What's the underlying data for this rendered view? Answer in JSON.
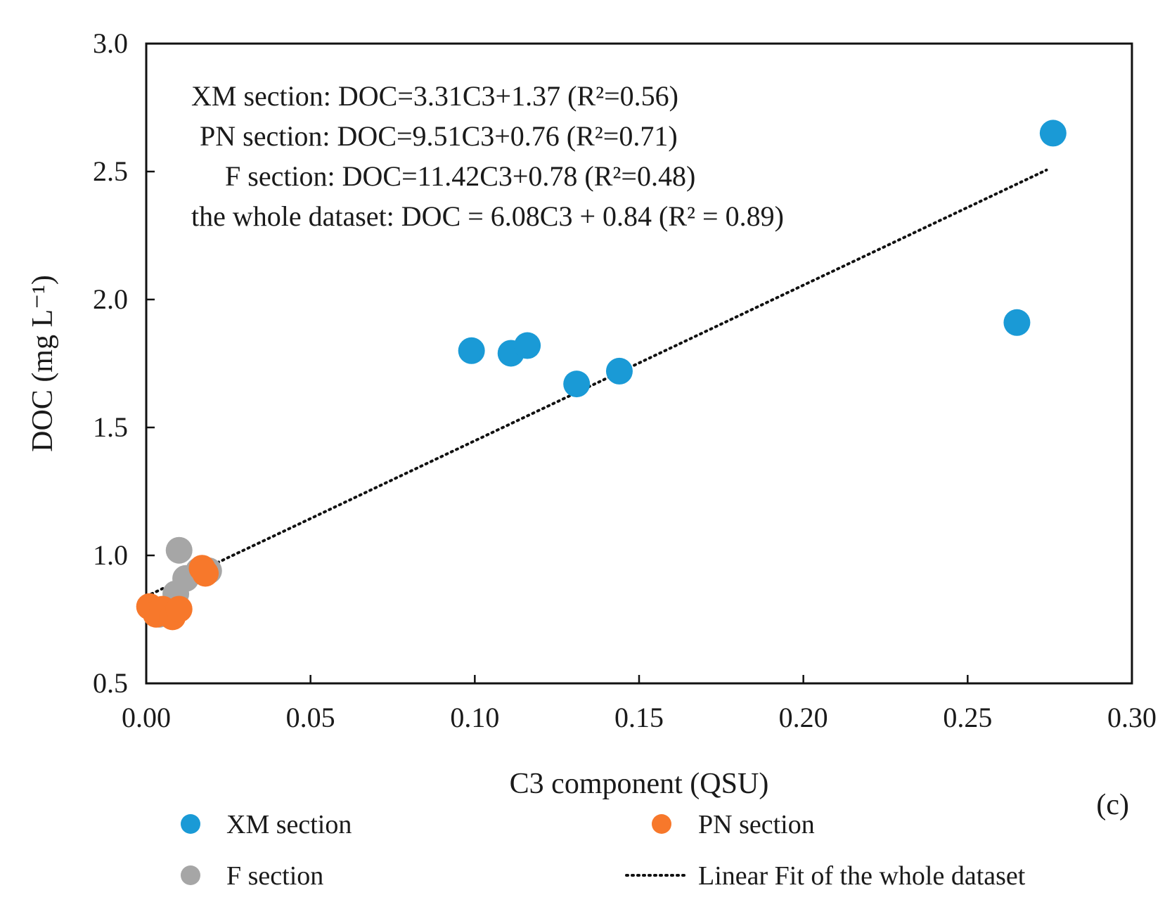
{
  "chart_data": {
    "type": "scatter",
    "panel_label": "(c)",
    "xlabel": "C3 component  (QSU)",
    "ylabel": "DOC (mg L⁻¹)",
    "xlim": [
      0.0,
      0.3
    ],
    "ylim": [
      0.5,
      3.0
    ],
    "xticks": [
      0.0,
      0.05,
      0.1,
      0.15,
      0.2,
      0.25,
      0.3
    ],
    "xtick_labels": [
      "0.00",
      "0.05",
      "0.10",
      "0.15",
      "0.20",
      "0.25",
      "0.30"
    ],
    "yticks": [
      0.5,
      1.0,
      1.5,
      2.0,
      2.5,
      3.0
    ],
    "ytick_labels": [
      "0.5",
      "1.0",
      "1.5",
      "2.0",
      "2.5",
      "3.0"
    ],
    "grid": false,
    "annotations": [
      "XM section:  DOC=3.31C3+1.37  (R²=0.56)",
      "PN section:  DOC=9.51C3+0.76   (R²=0.71)",
      "F section:  DOC=11.42C3+0.78  (R²=0.48)",
      "the whole dataset:  DOC = 6.08C3  + 0.84 (R² = 0.89)"
    ],
    "series": [
      {
        "name": "XM section",
        "color": "#1a9ad6",
        "points": [
          {
            "x": 0.099,
            "y": 1.8
          },
          {
            "x": 0.111,
            "y": 1.79
          },
          {
            "x": 0.116,
            "y": 1.82
          },
          {
            "x": 0.131,
            "y": 1.67
          },
          {
            "x": 0.144,
            "y": 1.72
          },
          {
            "x": 0.265,
            "y": 1.91
          },
          {
            "x": 0.276,
            "y": 2.65
          }
        ]
      },
      {
        "name": "PN section",
        "color": "#f7782b",
        "points": [
          {
            "x": 0.001,
            "y": 0.8
          },
          {
            "x": 0.003,
            "y": 0.77
          },
          {
            "x": 0.005,
            "y": 0.79
          },
          {
            "x": 0.008,
            "y": 0.76
          },
          {
            "x": 0.01,
            "y": 0.79
          },
          {
            "x": 0.017,
            "y": 0.95
          },
          {
            "x": 0.018,
            "y": 0.93
          }
        ]
      },
      {
        "name": "F section",
        "color": "#a6a6a6",
        "points": [
          {
            "x": 0.004,
            "y": 0.77
          },
          {
            "x": 0.006,
            "y": 0.78
          },
          {
            "x": 0.009,
            "y": 0.85
          },
          {
            "x": 0.01,
            "y": 1.02
          },
          {
            "x": 0.012,
            "y": 0.91
          },
          {
            "x": 0.016,
            "y": 0.94
          },
          {
            "x": 0.019,
            "y": 0.94
          }
        ]
      }
    ],
    "fit": {
      "name": "Linear Fit of the whole dataset",
      "slope": 6.08,
      "intercept": 0.84,
      "x_range": [
        0.0,
        0.274
      ],
      "color": "#111111"
    },
    "legend": {
      "position": "bottom",
      "entries": [
        {
          "label": "XM section",
          "kind": "marker",
          "color": "#1a9ad6"
        },
        {
          "label": "PN section",
          "kind": "marker",
          "color": "#f7782b"
        },
        {
          "label": "F section",
          "kind": "marker",
          "color": "#a6a6a6"
        },
        {
          "label": "Linear Fit of the whole dataset",
          "kind": "dotted-line",
          "color": "#111111"
        }
      ]
    }
  }
}
